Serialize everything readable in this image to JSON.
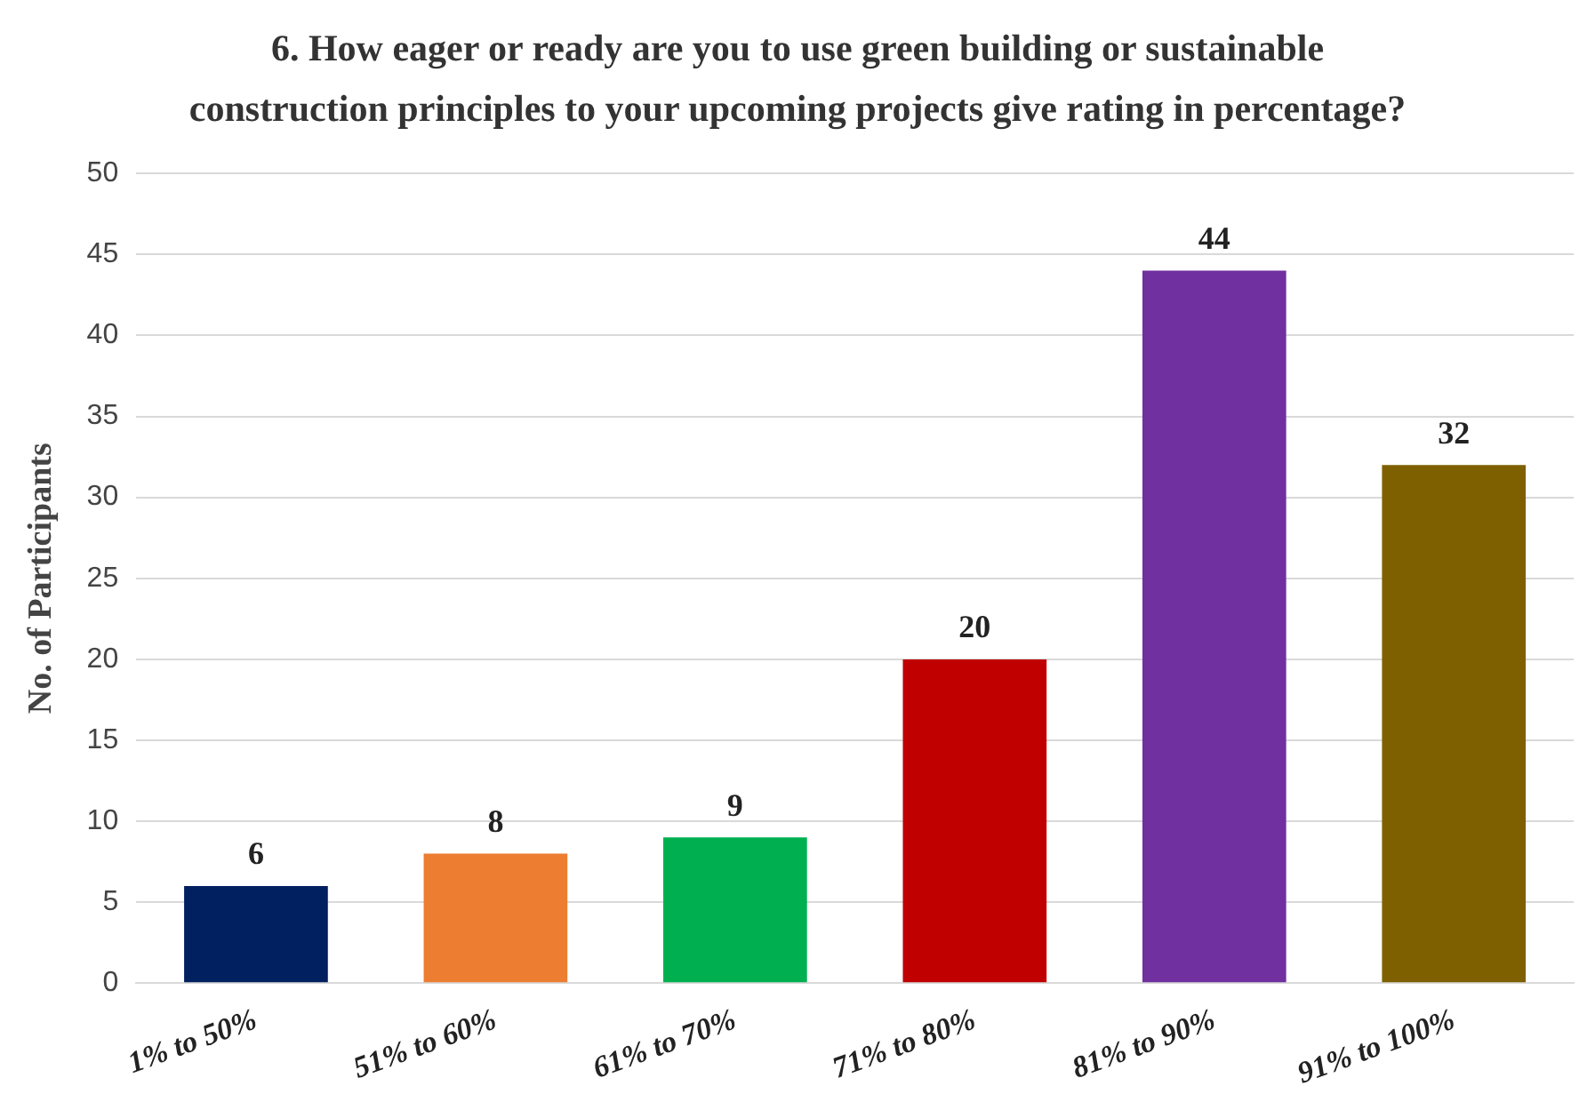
{
  "chart_data": {
    "type": "bar",
    "title": "6. How eager or ready are you to use green building or sustainable construction principles to your upcoming projects give rating in percentage?",
    "ylabel": "No. of Participants",
    "categories": [
      "1% to 50%",
      "51% to 60%",
      "61% to 70%",
      "71% to 80%",
      "81% to 90%",
      "91% to 100%"
    ],
    "values": [
      6,
      8,
      9,
      20,
      44,
      32
    ],
    "colors": [
      "#002060",
      "#ed7d31",
      "#00b050",
      "#c00000",
      "#7030a0",
      "#7f6000"
    ],
    "ylim": [
      0,
      50
    ],
    "yticks": [
      0,
      5,
      10,
      15,
      20,
      25,
      30,
      35,
      40,
      45,
      50
    ],
    "grid": "y",
    "data_labels": true,
    "legend": false
  }
}
